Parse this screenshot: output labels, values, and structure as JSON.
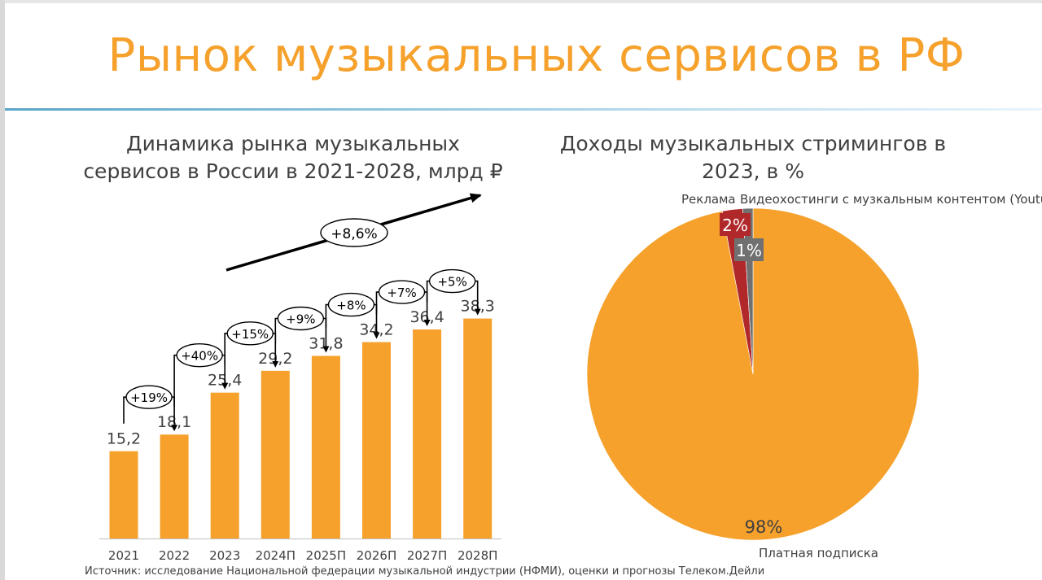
{
  "page": {
    "title": "Рынок музыкальных сервисов в РФ",
    "source": "Источник: исследование Национальной федерации музыкальной индустрии (НФМИ), оценки и прогнозы Телеком.Дейли"
  },
  "chart_data": [
    {
      "type": "bar",
      "title": "Динамика рынка музыкальных сервисов в России в 2021-2028, млрд ₽",
      "categories": [
        "2021",
        "2022",
        "2023",
        "2024П",
        "2025П",
        "2026П",
        "2027П",
        "2028П"
      ],
      "values": [
        15.2,
        18.1,
        25.4,
        29.2,
        31.8,
        34.2,
        36.4,
        38.3
      ],
      "value_labels": [
        "15,2",
        "18,1",
        "25,4",
        "29,2",
        "31,8",
        "34,2",
        "36,4",
        "38,3"
      ],
      "growth_labels": [
        "+19%",
        "+40%",
        "+15%",
        "+9%",
        "+8%",
        "+7%",
        "+5%"
      ],
      "cagr_label": "+8,6%",
      "ylim": [
        0,
        45
      ],
      "bar_color": "#f5a12c",
      "grid": false
    },
    {
      "type": "pie",
      "title": "Доходы музыкальных стримингов в 2023, в %",
      "slices": [
        {
          "label": "Платная подписка",
          "value": 98,
          "value_label": "98%",
          "color": "#f5a12c"
        },
        {
          "label": "Реклама",
          "value": 2,
          "value_label": "2%",
          "color": "#b0282a"
        },
        {
          "label": "Видеохостинги с музкальным контентом (Youtube)",
          "value": 1,
          "value_label": "1%",
          "color": "#707070"
        }
      ]
    }
  ]
}
